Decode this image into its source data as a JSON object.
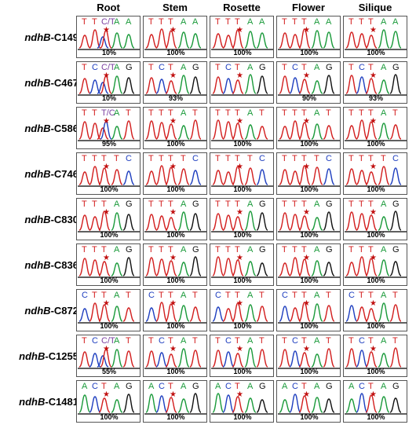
{
  "columns": [
    "Root",
    "Stem",
    "Rosette",
    "Flower",
    "Silique"
  ],
  "colors": {
    "A": "#1a9a3a",
    "C": "#1f3fbf",
    "G": "#111111",
    "T": "#d21e1e",
    "mixed": "#7a3fa0",
    "star": "#c01010"
  },
  "rows": [
    {
      "gene": "ndhB",
      "site": "-C149",
      "cells": [
        {
          "bases": [
            "T",
            "T",
            "C/T",
            "A",
            "A"
          ],
          "edit": 2,
          "percent": "10%"
        },
        {
          "bases": [
            "T",
            "T",
            "T",
            "A",
            "A"
          ],
          "edit": 2,
          "percent": "100%"
        },
        {
          "bases": [
            "T",
            "T",
            "T",
            "A",
            "A"
          ],
          "edit": 2,
          "percent": "100%"
        },
        {
          "bases": [
            "T",
            "T",
            "T",
            "A",
            "A"
          ],
          "edit": 2,
          "percent": "100%"
        },
        {
          "bases": [
            "T",
            "T",
            "T",
            "A",
            "A"
          ],
          "edit": 2,
          "percent": "100%"
        }
      ]
    },
    {
      "gene": "ndhB",
      "site": "-C467",
      "cells": [
        {
          "bases": [
            "T",
            "C",
            "C/T",
            "A",
            "G"
          ],
          "edit": 2,
          "percent": "10%"
        },
        {
          "bases": [
            "T",
            "C",
            "T",
            "A",
            "G"
          ],
          "edit": 2,
          "percent": "93%"
        },
        {
          "bases": [
            "T",
            "C",
            "T",
            "A",
            "G"
          ],
          "edit": 2,
          "percent": ""
        },
        {
          "bases": [
            "T",
            "C",
            "T",
            "A",
            "G"
          ],
          "edit": 2,
          "percent": "90%"
        },
        {
          "bases": [
            "T",
            "C",
            "T",
            "A",
            "G"
          ],
          "edit": 2,
          "percent": "93%"
        }
      ]
    },
    {
      "gene": "ndhB",
      "site": "-C586",
      "cells": [
        {
          "bases": [
            "T",
            "T",
            "T/C",
            "A",
            "T"
          ],
          "edit": 2,
          "percent": "95%"
        },
        {
          "bases": [
            "T",
            "T",
            "T",
            "A",
            "T"
          ],
          "edit": 2,
          "percent": "100%"
        },
        {
          "bases": [
            "T",
            "T",
            "T",
            "A",
            "T"
          ],
          "edit": 2,
          "percent": "100%"
        },
        {
          "bases": [
            "T",
            "T",
            "T",
            "A",
            "T"
          ],
          "edit": 2,
          "percent": "100%"
        },
        {
          "bases": [
            "T",
            "T",
            "T",
            "A",
            "T"
          ],
          "edit": 2,
          "percent": "100%"
        }
      ]
    },
    {
      "gene": "ndhB",
      "site": "-C746",
      "cells": [
        {
          "bases": [
            "T",
            "T",
            "T",
            "T",
            "C"
          ],
          "edit": 2,
          "percent": "100%"
        },
        {
          "bases": [
            "T",
            "T",
            "T",
            "T",
            "C"
          ],
          "edit": 2,
          "percent": "100%"
        },
        {
          "bases": [
            "T",
            "T",
            "T",
            "T",
            "C"
          ],
          "edit": 2,
          "percent": "100%"
        },
        {
          "bases": [
            "T",
            "T",
            "T",
            "T",
            "C"
          ],
          "edit": 2,
          "percent": "100%"
        },
        {
          "bases": [
            "T",
            "T",
            "T",
            "T",
            "C"
          ],
          "edit": 2,
          "percent": "100%"
        }
      ]
    },
    {
      "gene": "ndhB",
      "site": "-C830",
      "cells": [
        {
          "bases": [
            "T",
            "T",
            "T",
            "A",
            "G"
          ],
          "edit": 2,
          "percent": "100%"
        },
        {
          "bases": [
            "T",
            "T",
            "T",
            "A",
            "G"
          ],
          "edit": 2,
          "percent": "100%"
        },
        {
          "bases": [
            "T",
            "T",
            "T",
            "A",
            "G"
          ],
          "edit": 2,
          "percent": "100%"
        },
        {
          "bases": [
            "T",
            "T",
            "T",
            "A",
            "G"
          ],
          "edit": 2,
          "percent": "100%"
        },
        {
          "bases": [
            "T",
            "T",
            "T",
            "A",
            "G"
          ],
          "edit": 2,
          "percent": "100%"
        }
      ]
    },
    {
      "gene": "ndhB",
      "site": "-C836",
      "cells": [
        {
          "bases": [
            "T",
            "T",
            "T",
            "A",
            "G"
          ],
          "edit": 2,
          "percent": "100%"
        },
        {
          "bases": [
            "T",
            "T",
            "T",
            "A",
            "G"
          ],
          "edit": 2,
          "percent": "100%"
        },
        {
          "bases": [
            "T",
            "T",
            "T",
            "A",
            "G"
          ],
          "edit": 2,
          "percent": "100%"
        },
        {
          "bases": [
            "T",
            "T",
            "T",
            "A",
            "G"
          ],
          "edit": 2,
          "percent": "100%"
        },
        {
          "bases": [
            "T",
            "T",
            "T",
            "A",
            "G"
          ],
          "edit": 2,
          "percent": "100%"
        }
      ]
    },
    {
      "gene": "ndhB",
      "site": "-C872",
      "cells": [
        {
          "bases": [
            "C",
            "T",
            "T",
            "A",
            "T"
          ],
          "edit": 2,
          "percent": "100%"
        },
        {
          "bases": [
            "C",
            "T",
            "T",
            "A",
            "T"
          ],
          "edit": 2,
          "percent": "100%"
        },
        {
          "bases": [
            "C",
            "T",
            "T",
            "A",
            "T"
          ],
          "edit": 2,
          "percent": "100%"
        },
        {
          "bases": [
            "C",
            "T",
            "T",
            "A",
            "T"
          ],
          "edit": 2,
          "percent": "100%"
        },
        {
          "bases": [
            "C",
            "T",
            "T",
            "A",
            "T"
          ],
          "edit": 2,
          "percent": "100%"
        }
      ]
    },
    {
      "gene": "ndhB",
      "site": "-C1255",
      "cells": [
        {
          "bases": [
            "T",
            "C",
            "C/T",
            "A",
            "T"
          ],
          "edit": 2,
          "percent": "55%"
        },
        {
          "bases": [
            "T",
            "C",
            "T",
            "A",
            "T"
          ],
          "edit": 2,
          "percent": "100%"
        },
        {
          "bases": [
            "T",
            "C",
            "T",
            "A",
            "T"
          ],
          "edit": 2,
          "percent": "100%"
        },
        {
          "bases": [
            "T",
            "C",
            "T",
            "A",
            "T"
          ],
          "edit": 2,
          "percent": "100%"
        },
        {
          "bases": [
            "T",
            "C",
            "T",
            "A",
            "T"
          ],
          "edit": 2,
          "percent": "100%"
        }
      ]
    },
    {
      "gene": "ndhB",
      "site": "-C1481",
      "cells": [
        {
          "bases": [
            "A",
            "C",
            "T",
            "A",
            "G"
          ],
          "edit": 2,
          "percent": "100%"
        },
        {
          "bases": [
            "A",
            "C",
            "T",
            "A",
            "G"
          ],
          "edit": 2,
          "percent": "100%"
        },
        {
          "bases": [
            "A",
            "C",
            "T",
            "A",
            "G"
          ],
          "edit": 2,
          "percent": "100%"
        },
        {
          "bases": [
            "A",
            "C",
            "T",
            "A",
            "G"
          ],
          "edit": 2,
          "percent": "100%"
        },
        {
          "bases": [
            "A",
            "C",
            "T",
            "A",
            "G"
          ],
          "edit": 2,
          "percent": "100%"
        }
      ]
    }
  ]
}
